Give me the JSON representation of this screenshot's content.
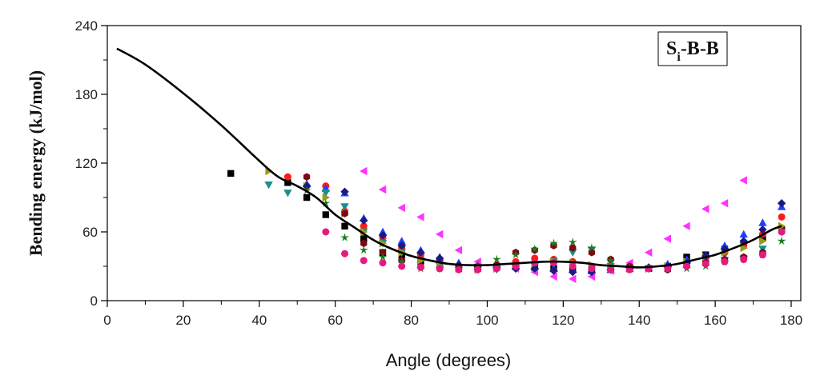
{
  "chart_data": {
    "type": "scatter",
    "title": "",
    "xlabel": "Angle (degrees)",
    "ylabel": "Bending energy (kJ/mol)",
    "xlim": [
      0,
      180
    ],
    "ylim": [
      0,
      240
    ],
    "xticks": [
      0,
      20,
      40,
      60,
      80,
      100,
      120,
      140,
      160,
      180
    ],
    "yticks": [
      0,
      60,
      120,
      180,
      240
    ],
    "grid": false,
    "legend": {
      "main": "S",
      "sub": "i",
      "rest": "-B-B",
      "position": "top-right"
    },
    "fit_curve": {
      "name": "fit",
      "color": "#000000",
      "x": [
        2.5,
        10,
        20,
        30,
        40,
        45,
        50,
        55,
        60,
        65,
        70,
        75,
        80,
        85,
        90,
        95,
        100,
        105,
        110,
        115,
        120,
        125,
        130,
        135,
        140,
        145,
        150,
        155,
        160,
        165,
        170,
        175,
        177.5
      ],
      "y": [
        220,
        206,
        181,
        153,
        122,
        108,
        100,
        90,
        75,
        64,
        53,
        45,
        39,
        35,
        32,
        31,
        31,
        32,
        33,
        34,
        34,
        33,
        31,
        30,
        29,
        30,
        32,
        36,
        40,
        46,
        53,
        62,
        65
      ]
    },
    "series": [
      {
        "name": "black squares",
        "marker": "square",
        "color": "#000000",
        "x": [
          32.5,
          47.5,
          52.5,
          57.5,
          62.5,
          67.5,
          72.5,
          77.5,
          82.5,
          87.5,
          92.5,
          97.5,
          102.5,
          107.5,
          112.5,
          117.5,
          122.5,
          127.5,
          132.5,
          137.5,
          142.5,
          147.5,
          152.5,
          157.5,
          162.5,
          167.5,
          172.5,
          177.5
        ],
        "y": [
          111,
          103,
          90,
          75,
          65,
          54,
          42,
          40,
          35,
          30,
          28,
          28,
          29,
          30,
          29,
          28,
          27,
          27,
          28,
          28,
          28,
          30,
          38,
          40,
          45,
          50,
          55,
          62
        ]
      },
      {
        "name": "red circles",
        "marker": "circle",
        "color": "#ff1a1a",
        "x": [
          47.5,
          52.5,
          57.5,
          62.5,
          67.5,
          72.5,
          77.5,
          82.5,
          87.5,
          92.5,
          97.5,
          102.5,
          107.5,
          112.5,
          117.5,
          122.5,
          127.5,
          132.5,
          137.5,
          142.5,
          147.5,
          152.5,
          157.5,
          162.5,
          167.5,
          172.5,
          177.5
        ],
        "y": [
          108,
          100,
          100,
          78,
          65,
          55,
          46,
          40,
          34,
          30,
          30,
          31,
          34,
          37,
          36,
          34,
          30,
          29,
          28,
          28,
          30,
          33,
          37,
          42,
          48,
          58,
          73
        ]
      },
      {
        "name": "blue up-triangles",
        "marker": "triangle-up",
        "color": "#1f3fff",
        "x": [
          52.5,
          57.5,
          62.5,
          67.5,
          72.5,
          77.5,
          82.5,
          87.5,
          92.5,
          97.5,
          102.5,
          107.5,
          112.5,
          117.5,
          122.5,
          127.5,
          132.5,
          137.5,
          142.5,
          147.5,
          152.5,
          157.5,
          162.5,
          167.5,
          172.5,
          177.5
        ],
        "y": [
          102,
          98,
          94,
          72,
          60,
          52,
          44,
          38,
          33,
          30,
          30,
          30,
          30,
          28,
          27,
          26,
          27,
          28,
          29,
          32,
          36,
          40,
          48,
          58,
          68,
          82
        ]
      },
      {
        "name": "teal down-triangles",
        "marker": "triangle-down",
        "color": "#1a8f8f",
        "x": [
          42.5,
          47.5,
          57.5,
          62.5,
          67.5,
          72.5,
          77.5,
          82.5,
          87.5,
          92.5,
          97.5,
          102.5,
          107.5,
          112.5,
          117.5,
          122.5,
          127.5,
          132.5,
          137.5,
          142.5,
          147.5,
          152.5,
          157.5,
          162.5,
          167.5,
          172.5,
          177.5
        ],
        "y": [
          101,
          94,
          94,
          82,
          60,
          50,
          42,
          35,
          30,
          28,
          27,
          27,
          28,
          30,
          34,
          42,
          44,
          30,
          28,
          28,
          28,
          30,
          32,
          35,
          36,
          45,
          60
        ]
      },
      {
        "name": "magenta left-triangles",
        "marker": "triangle-left",
        "color": "#ff33ff",
        "x": [
          67.5,
          72.5,
          77.5,
          82.5,
          87.5,
          92.5,
          97.5,
          102.5,
          107.5,
          112.5,
          117.5,
          122.5,
          127.5,
          132.5,
          137.5,
          142.5,
          147.5,
          152.5,
          157.5,
          162.5,
          167.5
        ],
        "y": [
          113,
          97,
          81,
          73,
          58,
          44,
          34,
          30,
          28,
          25,
          21,
          19,
          21,
          26,
          33,
          42,
          54,
          65,
          80,
          85,
          105
        ]
      },
      {
        "name": "olive right-triangles",
        "marker": "triangle-right",
        "color": "#9a9a1a",
        "x": [
          42.5,
          52.5,
          57.5,
          62.5,
          67.5,
          72.5,
          77.5,
          82.5,
          87.5,
          92.5,
          97.5,
          102.5,
          107.5,
          112.5,
          117.5,
          122.5,
          127.5,
          132.5,
          137.5,
          142.5,
          147.5,
          152.5,
          157.5,
          162.5,
          167.5,
          172.5,
          177.5
        ],
        "y": [
          113,
          100,
          90,
          76,
          60,
          50,
          42,
          35,
          30,
          28,
          27,
          28,
          30,
          32,
          34,
          33,
          31,
          29,
          28,
          28,
          30,
          34,
          38,
          42,
          46,
          52,
          65
        ]
      },
      {
        "name": "navy diamonds",
        "marker": "diamond",
        "color": "#1a1a80",
        "x": [
          52.5,
          62.5,
          67.5,
          72.5,
          77.5,
          82.5,
          87.5,
          92.5,
          97.5,
          102.5,
          107.5,
          112.5,
          117.5,
          122.5,
          127.5,
          132.5,
          137.5,
          142.5,
          147.5,
          152.5,
          157.5,
          162.5,
          167.5,
          172.5,
          177.5
        ],
        "y": [
          100,
          95,
          70,
          57,
          48,
          42,
          37,
          31,
          30,
          29,
          28,
          28,
          26,
          25,
          25,
          27,
          28,
          29,
          30,
          33,
          39,
          45,
          52,
          62,
          85
        ]
      },
      {
        "name": "dark red hexagons",
        "marker": "hexagon",
        "color": "#7a0a14",
        "x": [
          52.5,
          62.5,
          67.5,
          72.5,
          77.5,
          82.5,
          87.5,
          92.5,
          97.5,
          102.5,
          107.5,
          112.5,
          117.5,
          122.5,
          127.5,
          132.5,
          137.5,
          142.5,
          147.5,
          152.5,
          157.5,
          162.5,
          167.5,
          172.5,
          177.5
        ],
        "y": [
          108,
          76,
          50,
          42,
          35,
          30,
          28,
          28,
          28,
          31,
          42,
          44,
          48,
          46,
          42,
          36,
          30,
          28,
          27,
          30,
          33,
          36,
          38,
          42,
          60
        ]
      },
      {
        "name": "green stars",
        "marker": "star",
        "color": "#1a7a1a",
        "x": [
          52.5,
          57.5,
          62.5,
          67.5,
          72.5,
          77.5,
          82.5,
          87.5,
          92.5,
          97.5,
          102.5,
          107.5,
          112.5,
          117.5,
          122.5,
          127.5,
          132.5,
          137.5,
          142.5,
          147.5,
          152.5,
          157.5,
          162.5,
          167.5,
          172.5,
          177.5
        ],
        "y": [
          96,
          85,
          55,
          44,
          38,
          34,
          28,
          28,
          28,
          31,
          36,
          40,
          45,
          50,
          51,
          46,
          35,
          29,
          28,
          28,
          28,
          30,
          34,
          36,
          40,
          52
        ]
      },
      {
        "name": "pink circles",
        "marker": "circle",
        "color": "#e6197f",
        "x": [
          57.5,
          62.5,
          67.5,
          72.5,
          77.5,
          82.5,
          87.5,
          92.5,
          97.5,
          102.5,
          107.5,
          112.5,
          117.5,
          122.5,
          127.5,
          132.5,
          137.5,
          142.5,
          147.5,
          152.5,
          157.5,
          162.5,
          167.5,
          172.5,
          177.5
        ],
        "y": [
          60,
          41,
          35,
          33,
          30,
          29,
          28,
          27,
          27,
          28,
          30,
          33,
          33,
          30,
          28,
          27,
          27,
          28,
          28,
          30,
          32,
          34,
          36,
          40,
          60
        ]
      }
    ]
  }
}
